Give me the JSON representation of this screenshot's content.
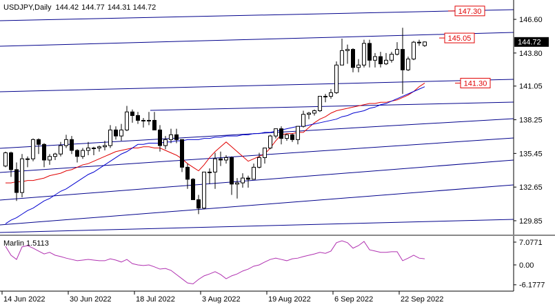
{
  "chart_data": [
    {
      "type": "candlestick",
      "title": "USDJPY,Daily",
      "categories": [
        "14 Jun 2022",
        null,
        null,
        null,
        null,
        null,
        null,
        null,
        null,
        null,
        null,
        null,
        "30 Jun 2022",
        null,
        null,
        null,
        null,
        null,
        null,
        null,
        null,
        null,
        null,
        null,
        "18 Jul 2022",
        null,
        null,
        null,
        null,
        null,
        null,
        null,
        null,
        null,
        null,
        null,
        "3 Aug 2022",
        null,
        null,
        null,
        null,
        null,
        null,
        null,
        null,
        null,
        null,
        null,
        "19 Aug 2022",
        null,
        null,
        null,
        null,
        null,
        null,
        null,
        null,
        null,
        null,
        null,
        "6 Sep 2022",
        null,
        null,
        null,
        null,
        null,
        null,
        null,
        null,
        null,
        null,
        null,
        "22 Sep 2022",
        null,
        null,
        null,
        null
      ],
      "open": [
        134.4,
        135.5,
        134.1,
        132.2,
        135.0,
        135.0,
        136.6,
        136.2,
        134.9,
        135.2,
        135.4,
        136.1,
        136.6,
        135.7,
        135.2,
        135.7,
        135.9,
        135.9,
        136.0,
        136.1,
        137.4,
        136.9,
        137.4,
        138.9,
        138.6,
        138.2,
        138.2,
        138.2,
        137.4,
        136.1,
        136.6,
        137.0,
        136.6,
        134.3,
        133.3,
        131.6,
        130.9,
        133.9,
        133.9,
        135.0,
        134.9,
        135.1,
        132.9,
        133.0,
        133.4,
        133.3,
        134.3,
        135.1,
        135.9,
        136.9,
        137.5,
        136.7,
        137.0,
        136.6,
        137.7,
        138.7,
        138.8,
        139.0,
        140.2,
        140.2,
        140.5,
        142.8,
        144.0,
        144.1,
        142.6,
        142.8,
        144.6,
        143.2,
        143.5,
        142.9,
        143.2,
        143.7,
        144.1,
        142.4,
        143.3,
        144.7,
        144.42
      ],
      "high": [
        135.6,
        135.6,
        134.7,
        135.4,
        135.2,
        136.7,
        136.7,
        136.3,
        135.4,
        135.5,
        136.4,
        137.0,
        136.9,
        135.8,
        135.9,
        136.4,
        136.0,
        136.1,
        136.5,
        137.8,
        137.7,
        137.9,
        139.4,
        139.1,
        138.9,
        138.4,
        138.9,
        138.9,
        137.8,
        136.9,
        137.5,
        137.5,
        136.6,
        134.6,
        133.4,
        132.0,
        133.9,
        134.2,
        135.5,
        135.6,
        135.3,
        135.2,
        133.4,
        133.8,
        133.6,
        134.6,
        135.5,
        135.9,
        137.0,
        137.5,
        137.7,
        137.1,
        137.1,
        137.7,
        139.0,
        138.9,
        139.1,
        140.2,
        140.4,
        140.8,
        143.1,
        145.0,
        144.5,
        144.2,
        143.3,
        144.9,
        144.9,
        143.8,
        143.9,
        143.8,
        143.9,
        144.7,
        145.9,
        143.5,
        144.8,
        144.9,
        144.77
      ],
      "low": [
        134.3,
        133.5,
        131.5,
        131.8,
        134.3,
        134.8,
        135.4,
        134.3,
        134.5,
        134.9,
        135.2,
        135.9,
        135.4,
        134.7,
        135.0,
        135.3,
        135.3,
        135.6,
        135.7,
        135.9,
        136.6,
        136.5,
        137.3,
        138.0,
        137.9,
        137.6,
        137.8,
        137.4,
        135.6,
        135.8,
        136.3,
        136.3,
        133.9,
        132.5,
        131.6,
        130.4,
        130.8,
        132.9,
        132.5,
        134.4,
        134.6,
        132.0,
        131.7,
        132.6,
        132.6,
        133.3,
        134.2,
        134.6,
        135.8,
        136.7,
        136.2,
        136.5,
        136.4,
        136.2,
        137.6,
        138.3,
        138.6,
        138.9,
        139.7,
        140.0,
        140.4,
        142.8,
        142.9,
        142.2,
        142.2,
        142.6,
        142.6,
        142.6,
        142.6,
        142.8,
        143.0,
        143.6,
        140.4,
        142.3,
        143.2,
        144.4,
        144.31
      ],
      "close": [
        135.5,
        134.1,
        132.2,
        135.0,
        135.0,
        136.6,
        136.2,
        134.9,
        135.2,
        135.4,
        136.1,
        136.6,
        135.7,
        135.2,
        135.7,
        135.9,
        135.9,
        136.0,
        136.1,
        137.4,
        136.9,
        137.4,
        138.9,
        138.6,
        138.2,
        138.2,
        138.2,
        137.4,
        136.1,
        136.6,
        137.0,
        136.6,
        134.3,
        133.3,
        131.6,
        130.9,
        133.9,
        133.9,
        135.0,
        134.9,
        135.1,
        132.9,
        133.0,
        133.4,
        133.3,
        134.3,
        135.1,
        135.9,
        136.9,
        137.5,
        136.7,
        137.0,
        136.6,
        137.7,
        138.7,
        138.8,
        139.0,
        140.2,
        140.2,
        140.5,
        142.8,
        144.0,
        144.1,
        142.6,
        142.8,
        144.6,
        143.2,
        143.5,
        142.9,
        143.2,
        143.7,
        144.1,
        142.4,
        143.3,
        144.7,
        144.7,
        144.72
      ],
      "lines": [
        {
          "color": "#e00000",
          "values": [
            133.0,
            133.0,
            133.1,
            133.1,
            133.2,
            133.2,
            133.3,
            133.4,
            133.6,
            133.7,
            133.8,
            134.0,
            134.1,
            134.3,
            134.5,
            134.6,
            134.8,
            135.0,
            135.2,
            135.4,
            135.6,
            135.7,
            135.8,
            135.9,
            135.9,
            136.0,
            136.0,
            135.9,
            135.9,
            135.7,
            135.5,
            135.3,
            135.0,
            134.6,
            134.3,
            134.0,
            134.5,
            135.1,
            135.6,
            136.0,
            136.4,
            136.0,
            135.6,
            135.2,
            134.8,
            135.0,
            135.2,
            135.4,
            135.9,
            136.5,
            137.0,
            137.1,
            137.1,
            137.2,
            137.2,
            137.6,
            138.0,
            138.3,
            138.5,
            138.8,
            139.0,
            139.1,
            139.2,
            139.3,
            139.4,
            139.5,
            139.6,
            139.6,
            139.7,
            139.7,
            139.8,
            139.9,
            140.1,
            140.3,
            140.6,
            141.0,
            141.3
          ]
        },
        {
          "color": "#0000d0",
          "values": [
            129.6,
            129.9,
            130.1,
            130.4,
            130.7,
            130.9,
            131.2,
            131.5,
            131.7,
            132.0,
            132.3,
            132.5,
            132.8,
            133.1,
            133.4,
            133.7,
            133.9,
            134.2,
            134.5,
            134.8,
            135.1,
            135.4,
            135.6,
            135.9,
            136.2,
            136.2,
            136.3,
            136.3,
            136.3,
            136.4,
            136.4,
            136.5,
            136.5,
            136.6,
            136.6,
            136.6,
            136.7,
            136.7,
            136.8,
            136.8,
            136.9,
            136.9,
            136.9,
            137.0,
            137.0,
            137.1,
            137.1,
            137.2,
            137.2,
            137.3,
            137.4,
            137.5,
            137.6,
            137.7,
            137.7,
            137.8,
            137.9,
            138.0,
            138.1,
            138.2,
            138.3,
            138.5,
            138.6,
            138.8,
            138.9,
            139.0,
            139.2,
            139.3,
            139.5,
            139.6,
            139.8,
            140.0,
            140.2,
            140.4,
            140.6,
            140.8,
            141.0
          ]
        }
      ],
      "levels": [
        {
          "value": 147.3,
          "label": "147.30"
        },
        {
          "value": 145.05,
          "label": "145.05"
        },
        {
          "value": 141.3,
          "label": "141.30"
        }
      ],
      "ylim": [
        128.7,
        148.21
      ],
      "yticks": [
        {
          "value": 146.6,
          "label": "146.60"
        },
        {
          "value": 143.8,
          "label": "143.80"
        },
        141.05,
        138.25,
        135.45,
        132.65,
        129.85
      ]
    },
    {
      "type": "line",
      "title": "Marlin 1.5113",
      "color": "#b030b0",
      "values": [
        5.8,
        3.0,
        1.7,
        5.6,
        6.0,
        5.2,
        4.3,
        3.4,
        3.9,
        3.0,
        2.6,
        2.1,
        1.7,
        1.3,
        1.5,
        1.7,
        1.5,
        1.3,
        1.3,
        1.9,
        1.5,
        0.9,
        1.7,
        0.4,
        0.0,
        -0.2,
        0.0,
        -0.6,
        -1.3,
        -1.1,
        -1.7,
        -3.0,
        -4.3,
        -5.6,
        -5.9,
        -4.5,
        -3.4,
        -2.8,
        -2.1,
        -3.0,
        -4.3,
        -3.4,
        -2.8,
        -1.9,
        -1.3,
        -0.4,
        0.0,
        0.9,
        1.7,
        2.1,
        1.7,
        1.3,
        1.9,
        2.1,
        2.6,
        3.0,
        3.4,
        3.9,
        3.6,
        4.3,
        6.9,
        7.5,
        6.9,
        5.2,
        6.0,
        7.3,
        4.7,
        4.3,
        3.9,
        3.9,
        4.1,
        4.1,
        1.3,
        2.1,
        3.0,
        2.1,
        1.9
      ],
      "ylim": [
        -8.15,
        9.0
      ],
      "yticks": [
        7.0771,
        {
          "value": 0,
          "label": "0.00"
        },
        -6.1777
      ]
    }
  ]
}
